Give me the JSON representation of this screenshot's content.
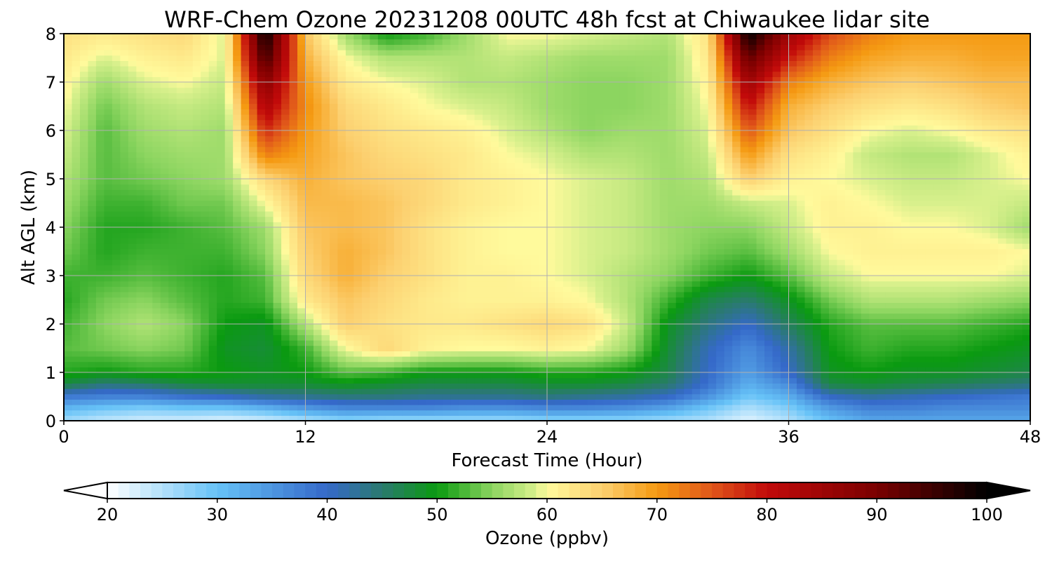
{
  "chart_data": {
    "type": "heatmap",
    "title": "WRF-Chem Ozone  20231208 00UTC 48h fcst at Chiwaukee lidar site",
    "xlabel": "Forecast Time (Hour)",
    "ylabel": "Alt AGL (km)",
    "xlim": [
      0,
      48
    ],
    "ylim": [
      0,
      8
    ],
    "xticks": [
      0,
      12,
      24,
      36,
      48
    ],
    "yticks": [
      0,
      1,
      2,
      3,
      4,
      5,
      6,
      7,
      8
    ],
    "grid": true,
    "x_hours": [
      0,
      2,
      4,
      6,
      8,
      10,
      12,
      14,
      16,
      18,
      20,
      22,
      24,
      26,
      28,
      30,
      32,
      34,
      36,
      38,
      40,
      42,
      44,
      46,
      48
    ],
    "z_km": [
      0,
      0.25,
      0.5,
      0.75,
      1,
      1.5,
      2,
      2.5,
      3,
      3.5,
      4,
      4.5,
      5,
      5.5,
      6,
      6.5,
      7,
      7.5,
      8
    ],
    "ozone_ppbv": [
      [
        26,
        24,
        23,
        23,
        22,
        23,
        25,
        27,
        26,
        26,
        26,
        26,
        27,
        27,
        27,
        26,
        25,
        22,
        25,
        30,
        33,
        33,
        33,
        33,
        33
      ],
      [
        31,
        29,
        28,
        29,
        29,
        31,
        34,
        36,
        36,
        36,
        35,
        35,
        36,
        36,
        35,
        33,
        29,
        25,
        28,
        34,
        37,
        37,
        36,
        36,
        36
      ],
      [
        38,
        37,
        37,
        39,
        40,
        42,
        43,
        44,
        44,
        43,
        43,
        43,
        44,
        43,
        42,
        40,
        35,
        29,
        32,
        40,
        42,
        41,
        40,
        39,
        38
      ],
      [
        47,
        44,
        45,
        47,
        48,
        48,
        48,
        49,
        48,
        47,
        47,
        47,
        48,
        48,
        47,
        45,
        39,
        32,
        36,
        47,
        48,
        47,
        46,
        45,
        44
      ],
      [
        51,
        50,
        51,
        51,
        50,
        49,
        50,
        53,
        52,
        50,
        50,
        50,
        51,
        51,
        50,
        47,
        40,
        34,
        40,
        49,
        50,
        49,
        49,
        48,
        47
      ],
      [
        53,
        54,
        55,
        54,
        49,
        48,
        52,
        60,
        64,
        61,
        60,
        60,
        61,
        60,
        56,
        48,
        41,
        36,
        42,
        50,
        52,
        51,
        51,
        50,
        49
      ],
      [
        52,
        55,
        57,
        55,
        50,
        49,
        57,
        65,
        63,
        62,
        62,
        63,
        64,
        63,
        58,
        49,
        44,
        40,
        46,
        51,
        53,
        53,
        53,
        52,
        51
      ],
      [
        51,
        54,
        55,
        53,
        51,
        52,
        62,
        66,
        64,
        62,
        61,
        61,
        61,
        60,
        57,
        52,
        47,
        45,
        49,
        54,
        57,
        57,
        57,
        56,
        55
      ],
      [
        52,
        52,
        53,
        52,
        51,
        53,
        64,
        68,
        65,
        63,
        61,
        61,
        60,
        59,
        57,
        55,
        52,
        50,
        53,
        58,
        60,
        60,
        60,
        60,
        59
      ],
      [
        54,
        51,
        52,
        52,
        52,
        55,
        65,
        68,
        66,
        63,
        61,
        60,
        60,
        59,
        58,
        56,
        54,
        53,
        56,
        60,
        61,
        61,
        61,
        61,
        60
      ],
      [
        55,
        51,
        51,
        52,
        53,
        56,
        66,
        67,
        66,
        63,
        61,
        60,
        60,
        59,
        58,
        56,
        55,
        55,
        58,
        61,
        61,
        60,
        60,
        59,
        56
      ],
      [
        56,
        52,
        52,
        54,
        54,
        60,
        67,
        67,
        66,
        64,
        62,
        61,
        60,
        59,
        58,
        56,
        56,
        58,
        59,
        61,
        60,
        59,
        59,
        59,
        58
      ],
      [
        57,
        53,
        54,
        55,
        56,
        64,
        68,
        66,
        65,
        64,
        62,
        61,
        60,
        59,
        58,
        56,
        57,
        65,
        61,
        60,
        59,
        58,
        58,
        59,
        60
      ],
      [
        58,
        53,
        55,
        56,
        56,
        72,
        69,
        66,
        64,
        63,
        62,
        60,
        59,
        57,
        57,
        56,
        58,
        70,
        63,
        61,
        58,
        57,
        57,
        59,
        61
      ],
      [
        59,
        53,
        56,
        57,
        56,
        78,
        70,
        65,
        63,
        62,
        61,
        59,
        57,
        55,
        56,
        56,
        59,
        75,
        66,
        63,
        60,
        59,
        60,
        62,
        63
      ],
      [
        60,
        54,
        57,
        58,
        57,
        83,
        71,
        64,
        62,
        60,
        59,
        58,
        56,
        55,
        55,
        56,
        60,
        80,
        68,
        65,
        63,
        62,
        63,
        65,
        66
      ],
      [
        61,
        56,
        59,
        60,
        58,
        88,
        70,
        62,
        60,
        59,
        57,
        57,
        56,
        55,
        55,
        56,
        61,
        85,
        72,
        68,
        66,
        65,
        66,
        67,
        67
      ],
      [
        62,
        59,
        61,
        62,
        59,
        95,
        68,
        60,
        57,
        57,
        57,
        58,
        57,
        56,
        56,
        56,
        62,
        92,
        79,
        72,
        69,
        68,
        68,
        69,
        69
      ],
      [
        63,
        62,
        63,
        64,
        59,
        100,
        66,
        56,
        50,
        52,
        56,
        60,
        60,
        59,
        58,
        57,
        63,
        100,
        85,
        76,
        72,
        70,
        70,
        70,
        70
      ]
    ],
    "colorbar": {
      "label": "Ozone  (ppbv)",
      "min": 20,
      "max": 100,
      "ticks": [
        20,
        30,
        40,
        50,
        60,
        70,
        80,
        90,
        100
      ],
      "extend": "both",
      "colormap_stops": [
        {
          "v": 20,
          "color": "#ffffff"
        },
        {
          "v": 30,
          "color": "#66c2f7"
        },
        {
          "v": 40,
          "color": "#3569c9"
        },
        {
          "v": 45,
          "color": "#2a7a6e"
        },
        {
          "v": 50,
          "color": "#0a9a10"
        },
        {
          "v": 55,
          "color": "#8cd560"
        },
        {
          "v": 59,
          "color": "#d8f08c"
        },
        {
          "v": 60,
          "color": "#fffa9c"
        },
        {
          "v": 65,
          "color": "#fcd070"
        },
        {
          "v": 70,
          "color": "#f59a12"
        },
        {
          "v": 75,
          "color": "#e0561a"
        },
        {
          "v": 80,
          "color": "#c20a0a"
        },
        {
          "v": 90,
          "color": "#7a0000"
        },
        {
          "v": 100,
          "color": "#000000"
        }
      ]
    }
  }
}
